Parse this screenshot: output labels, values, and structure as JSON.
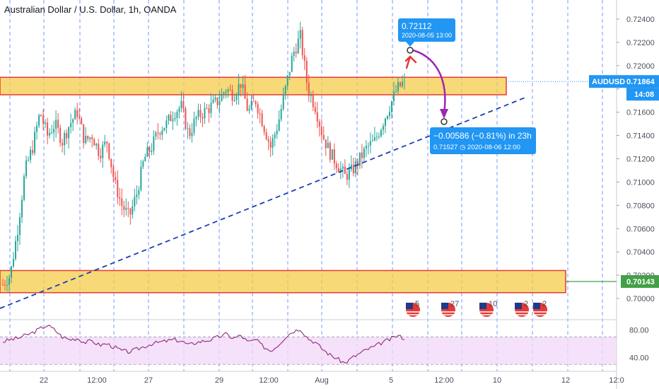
{
  "header": {
    "title": "Australian Dollar / U.S. Dollar, 1h, OANDA"
  },
  "colors": {
    "up": "#26a69a",
    "down": "#ef5350",
    "zone_fill": "#f6cc4a",
    "zone_border": "#e53935",
    "trendline": "#1a3fb5",
    "vgrid": "#2962ff",
    "arrow": "#9c27b0",
    "callout": "#2196f3",
    "rsi": "#8e2a7e",
    "rsi_band": "#f3d9f7",
    "price_tag": "#2196f3",
    "support_tag": "#43a047"
  },
  "price_axis": {
    "ticks": [
      "0.72400",
      "0.72200",
      "0.72000",
      "0.71800",
      "0.71600",
      "0.71400",
      "0.71200",
      "0.71000",
      "0.70800",
      "0.70600",
      "0.70400",
      "0.70200",
      "0.70000"
    ],
    "ticks_numeric": [
      0.724,
      0.722,
      0.72,
      0.718,
      0.716,
      0.714,
      0.712,
      0.71,
      0.708,
      0.706,
      0.704,
      0.702,
      0.7
    ]
  },
  "time_axis": {
    "labels": [
      "22",
      "12:00",
      "27",
      "29",
      "12:00",
      "Aug",
      "5",
      "12:00",
      "10",
      "12",
      "12:0"
    ]
  },
  "current_price": {
    "symbol": "AUDUSD",
    "value": "0.71864",
    "countdown": "14:08"
  },
  "support_tag": {
    "value": "0.70143"
  },
  "target_callout": {
    "price": "0.72112",
    "time": "2020-08-05 13:00"
  },
  "measure_callout": {
    "line1": "−0.00586 (−0.81%) in 23h",
    "line2": "0.71527 ◷ 2020-08-06  12:00"
  },
  "rsi_axis": {
    "ticks": [
      "80.00",
      "40.00"
    ]
  },
  "events": [
    {
      "icon": "flag-us-icon",
      "count": "5"
    },
    {
      "icon": "flag-us-au-icon",
      "count": "27"
    },
    {
      "icon": "flag-us-icon",
      "count": "10"
    },
    {
      "icon": "flag-us-icon",
      "count": "2"
    },
    {
      "icon": "flag-au-icon",
      "count": "2"
    }
  ],
  "chart_data": {
    "type": "candlestick",
    "title": "Australian Dollar / U.S. Dollar, 1h, OANDA",
    "symbol": "AUDUSD",
    "ylim": [
      0.699,
      0.725
    ],
    "resistance_zone": [
      0.7175,
      0.719
    ],
    "support_zone": [
      0.7005,
      0.7024
    ],
    "last_price": 0.71864,
    "target": {
      "price": 0.72112,
      "time": "2020-08-05 13:00"
    },
    "projection": {
      "price": 0.71527,
      "time": "2020-08-06 12:00",
      "change": -0.00586,
      "change_pct": -0.81,
      "duration": "23h"
    },
    "close_path": [
      0.7012,
      0.702,
      0.706,
      0.711,
      0.713,
      0.716,
      0.714,
      0.715,
      0.7135,
      0.715,
      0.716,
      0.7135,
      0.714,
      0.7125,
      0.7135,
      0.71,
      0.708,
      0.707,
      0.709,
      0.712,
      0.713,
      0.7145,
      0.715,
      0.716,
      0.7165,
      0.714,
      0.7155,
      0.716,
      0.7165,
      0.717,
      0.718,
      0.7175,
      0.7185,
      0.716,
      0.717,
      0.715,
      0.713,
      0.715,
      0.718,
      0.721,
      0.7225,
      0.718,
      0.7165,
      0.714,
      0.7125,
      0.7115,
      0.7105,
      0.711,
      0.712,
      0.713,
      0.7135,
      0.715,
      0.7165,
      0.718,
      0.7186
    ],
    "rsi": {
      "overbought": 70,
      "oversold": 30,
      "ticks": [
        80,
        40
      ],
      "ylim": [
        20,
        95
      ],
      "values": [
        63,
        66,
        68,
        72,
        76,
        82,
        87,
        80,
        70,
        66,
        68,
        62,
        64,
        58,
        60,
        55,
        50,
        48,
        52,
        56,
        60,
        62,
        64,
        66,
        64,
        58,
        62,
        64,
        66,
        70,
        74,
        68,
        72,
        62,
        66,
        56,
        50,
        58,
        70,
        78,
        82,
        68,
        62,
        52,
        44,
        38,
        32,
        40,
        46,
        52,
        56,
        62,
        66,
        72,
        68
      ]
    }
  }
}
